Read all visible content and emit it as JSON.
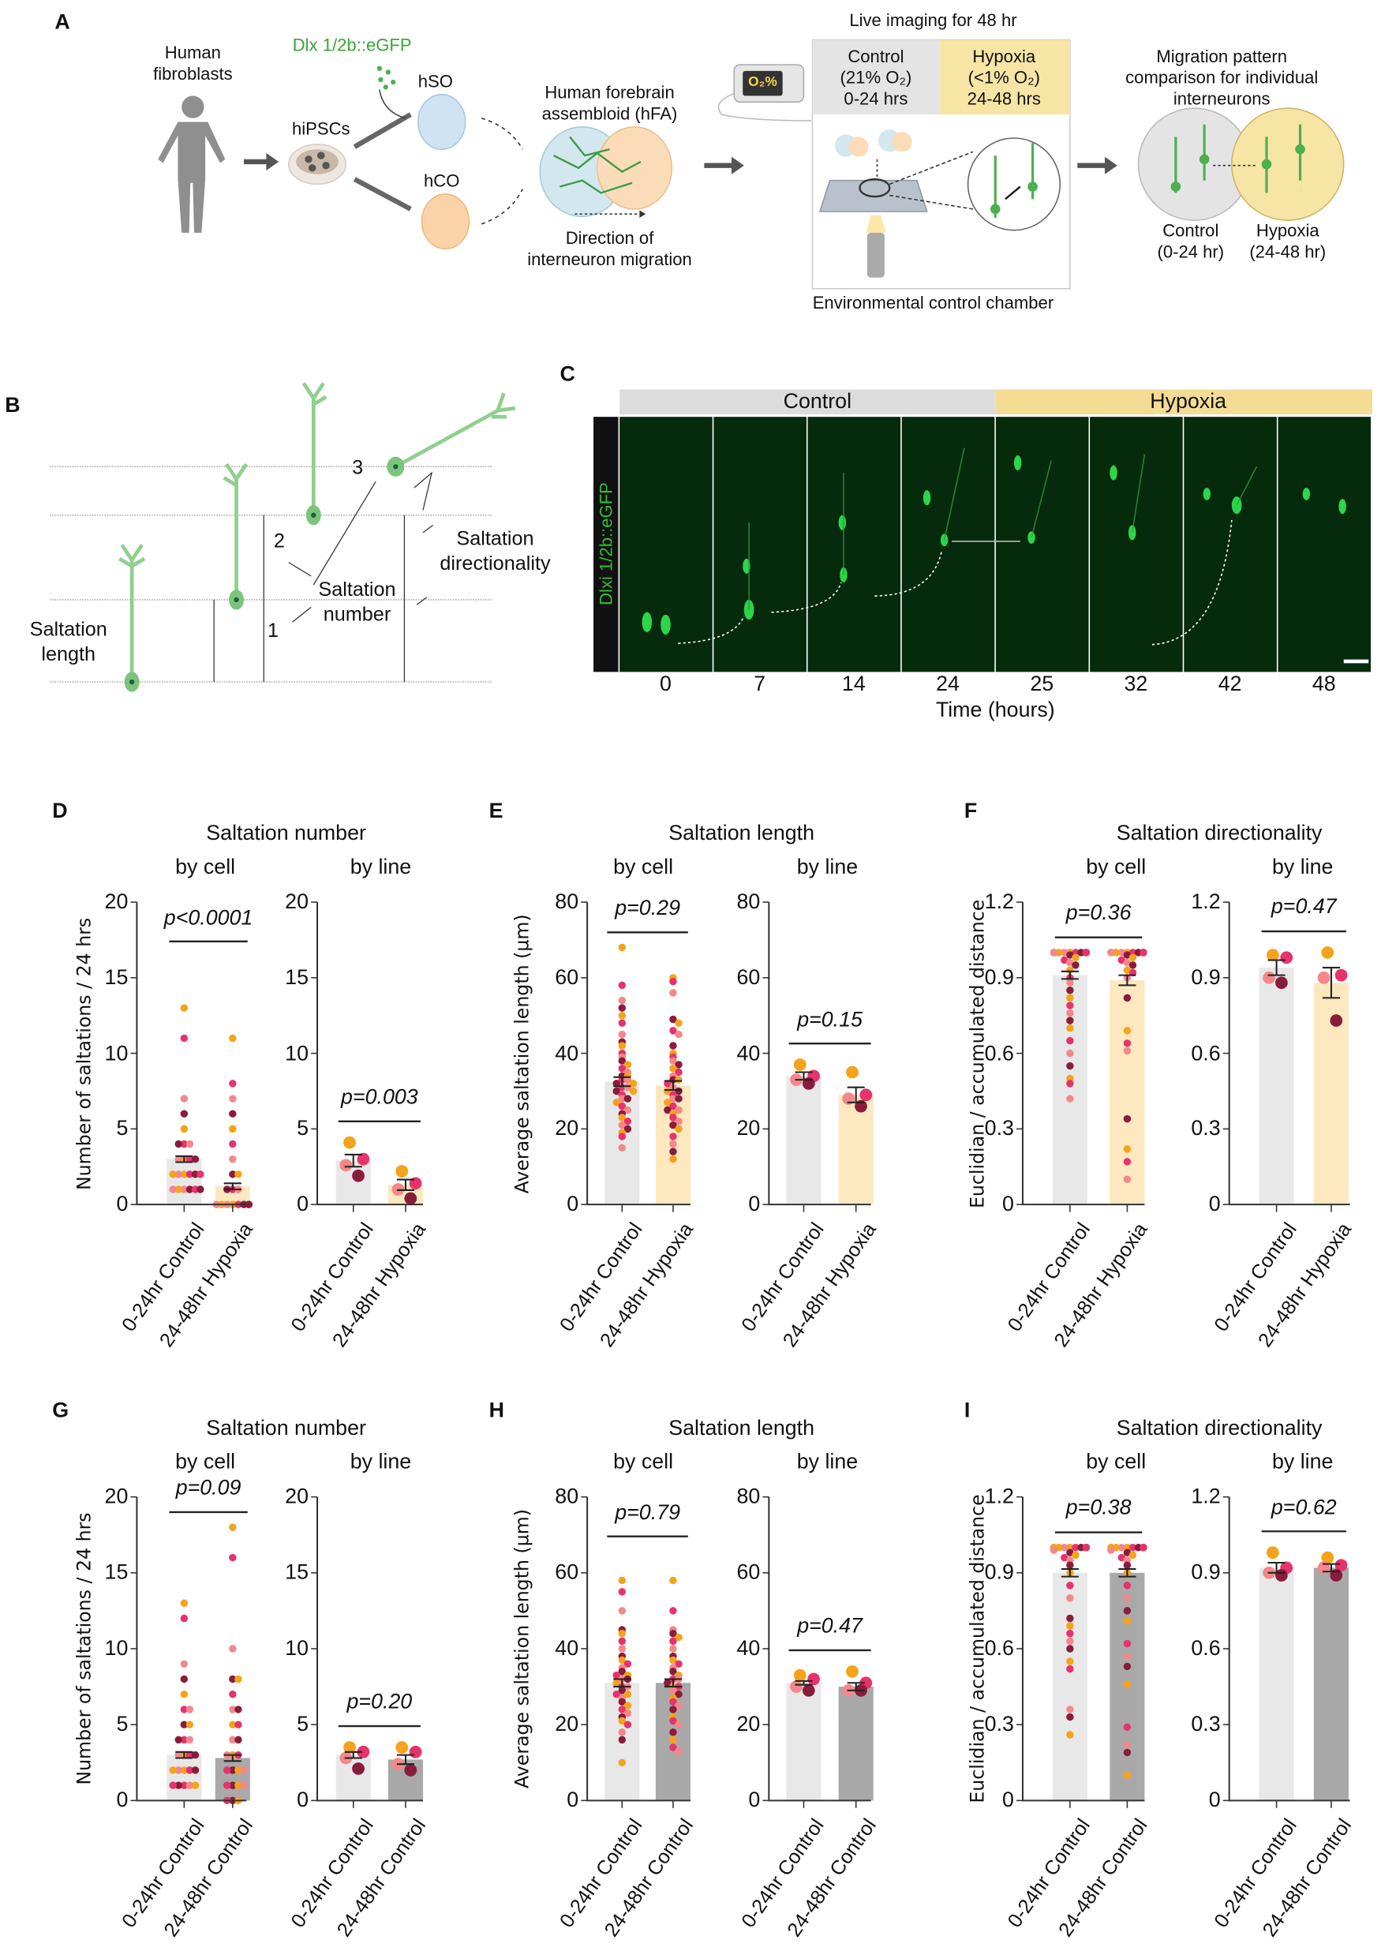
{
  "panel_labels": {
    "a": "A",
    "b": "B",
    "c": "C",
    "d": "D",
    "e": "E",
    "f": "F",
    "g": "G",
    "h": "H",
    "i": "I"
  },
  "panel_a": {
    "fibroblasts": "Human\nfibroblasts",
    "hipscs": "hiPSCs",
    "reporter": "Dlx 1/2b::eGFP",
    "hso": "hSO",
    "hco": "hCO",
    "hfa": "Human forebrain\nassembloid (hFA)",
    "direction": "Direction of\ninterneuron migration",
    "live_imaging": "Live imaging for 48 hr",
    "o2_display": "O₂%",
    "control_cond": "Control\n(21% O₂)\n0-24 hrs",
    "hypoxia_cond": "Hypoxia\n(<1% O₂)\n24-48 hrs",
    "chamber": "Environmental control chamber",
    "comparison": "Migration pattern\ncomparison for individual\ninterneurons",
    "control_label": "Control\n(0-24 hr)",
    "hypoxia_label": "Hypoxia\n(24-48 hr)",
    "colors": {
      "control": "#e4e4e4",
      "hypoxia": "#f6e5a5",
      "neuron": "#4caf50",
      "hso": "#cfe3f2",
      "hco": "#fbd3a8"
    }
  },
  "panel_b": {
    "n1": "1",
    "n2": "2",
    "n3": "3",
    "saltation_number": "Saltation\nnumber",
    "saltation_directionality": "Saltation\ndirectionality",
    "saltation_length": "Saltation\nlength"
  },
  "panel_c": {
    "control_header": "Control",
    "hypoxia_header": "Hypoxia",
    "stain_label": "Dlxi 1/2b::eGFP",
    "timepoints": [
      "0",
      "7",
      "14",
      "24",
      "25",
      "32",
      "42",
      "48"
    ],
    "xlabel": "Time (hours)"
  },
  "chart_data": [
    {
      "panel": "D",
      "type": "bar",
      "title": "Saltation number",
      "ylabel": "Number of saltations / 24 hrs",
      "ylim": [
        0,
        20
      ],
      "yticks": [
        0,
        5,
        10,
        15,
        20
      ],
      "categories": [
        "0-24hr Control",
        "24-48hr Hypoxia"
      ],
      "bar_colors": [
        "#e8e8e8",
        "#fde8bf"
      ],
      "subplots": [
        {
          "subtitle": "by cell",
          "p_value": "p<0.0001",
          "series": [
            {
              "mean": 3.0,
              "sem": 0.2,
              "points": [
                13,
                11,
                7,
                6,
                5,
                4,
                4,
                4,
                3,
                3,
                3,
                3,
                2,
                2,
                2,
                2,
                2,
                2,
                1,
                1,
                1,
                1,
                1,
                1
              ]
            },
            {
              "mean": 1.2,
              "sem": 0.2,
              "points": [
                11,
                8,
                7,
                6,
                5,
                4,
                3,
                2,
                2,
                1,
                1,
                1,
                0,
                0,
                0,
                0,
                0,
                0,
                0,
                0
              ]
            }
          ]
        },
        {
          "subtitle": "by line",
          "p_value": "p=0.003",
          "series": [
            {
              "mean": 2.9,
              "sem": 0.4,
              "points": [
                4.1,
                3.0,
                2.6,
                1.9
              ]
            },
            {
              "mean": 1.3,
              "sem": 0.35,
              "points": [
                2.2,
                1.4,
                1.0,
                0.4
              ]
            }
          ]
        }
      ]
    },
    {
      "panel": "E",
      "type": "bar",
      "title": "Saltation length",
      "ylabel": "Average saltation length (µm)",
      "ylim": [
        0,
        80
      ],
      "yticks": [
        0,
        20,
        40,
        60,
        80
      ],
      "categories": [
        "0-24hr Control",
        "24-48hr Hypoxia"
      ],
      "bar_colors": [
        "#e8e8e8",
        "#fde8bf"
      ],
      "subplots": [
        {
          "subtitle": "by cell",
          "p_value": "p=0.29",
          "series": [
            {
              "mean": 32.5,
              "sem": 1.2,
              "points": [
                68,
                58,
                54,
                52,
                50,
                48,
                45,
                43,
                42,
                40,
                39,
                38,
                37,
                36,
                35,
                34,
                34,
                33,
                33,
                32,
                32,
                31,
                31,
                30,
                30,
                29,
                28,
                28,
                27,
                26,
                25,
                24,
                23,
                22,
                21,
                20,
                19,
                18,
                15
              ]
            },
            {
              "mean": 31.5,
              "sem": 1.2,
              "points": [
                60,
                59,
                56,
                49,
                48,
                46,
                45,
                42,
                40,
                39,
                38,
                37,
                36,
                35,
                34,
                33,
                33,
                32,
                31,
                30,
                30,
                29,
                28,
                28,
                27,
                26,
                25,
                25,
                24,
                23,
                22,
                21,
                20,
                18,
                16,
                14,
                12
              ]
            }
          ]
        },
        {
          "subtitle": "by line",
          "p_value": "p=0.15",
          "series": [
            {
              "mean": 34,
              "sem": 1,
              "points": [
                37,
                34,
                33,
                32
              ]
            },
            {
              "mean": 29,
              "sem": 2,
              "points": [
                35,
                29,
                28,
                26
              ]
            }
          ]
        }
      ]
    },
    {
      "panel": "F",
      "type": "bar",
      "title": "Saltation directionality",
      "ylabel": "Euclidian / accumulated distance",
      "ylim": [
        0,
        1.2
      ],
      "yticks": [
        0,
        0.3,
        0.6,
        0.9,
        1.2
      ],
      "categories": [
        "0-24hr Control",
        "24-48hr Hypoxia"
      ],
      "bar_colors": [
        "#e8e8e8",
        "#fde8bf"
      ],
      "subplots": [
        {
          "subtitle": "by cell",
          "p_value": "p=0.36",
          "series": [
            {
              "mean": 0.91,
              "sem": 0.015,
              "points": [
                1,
                1,
                1,
                1,
                1,
                1,
                1,
                1,
                1,
                1,
                1,
                0.99,
                0.98,
                0.97,
                0.96,
                0.95,
                0.93,
                0.9,
                0.88,
                0.85,
                0.82,
                0.79,
                0.76,
                0.73,
                0.7,
                0.65,
                0.6,
                0.55,
                0.5,
                0.48,
                0.42
              ]
            },
            {
              "mean": 0.89,
              "sem": 0.02,
              "points": [
                1,
                1,
                1,
                1,
                1,
                1,
                1,
                1,
                1,
                1,
                1,
                0.99,
                0.98,
                0.97,
                0.96,
                0.95,
                0.93,
                0.92,
                0.9,
                0.82,
                0.69,
                0.64,
                0.61,
                0.34,
                0.22,
                0.17,
                0.1
              ]
            }
          ]
        },
        {
          "subtitle": "by line",
          "p_value": "p=0.47",
          "series": [
            {
              "mean": 0.94,
              "sem": 0.03,
              "points": [
                0.99,
                0.98,
                0.9,
                0.88
              ]
            },
            {
              "mean": 0.88,
              "sem": 0.06,
              "points": [
                1.0,
                0.91,
                0.9,
                0.73
              ]
            }
          ]
        }
      ]
    },
    {
      "panel": "G",
      "type": "bar",
      "title": "Saltation number",
      "ylabel": "Number of saltations / 24 hrs",
      "ylim": [
        0,
        20
      ],
      "yticks": [
        0,
        5,
        10,
        15,
        20
      ],
      "categories": [
        "0-24hr Control",
        "24-48hr Control"
      ],
      "bar_colors": [
        "#e8e8e8",
        "#a9a9a9"
      ],
      "subplots": [
        {
          "subtitle": "by cell",
          "p_value": "p=0.09",
          "series": [
            {
              "mean": 3.0,
              "sem": 0.2,
              "points": [
                13,
                12,
                9,
                8,
                7,
                6,
                6,
                5,
                5,
                4,
                4,
                4,
                3,
                3,
                3,
                3,
                2,
                2,
                2,
                2,
                2,
                1,
                1,
                1,
                1,
                1
              ]
            },
            {
              "mean": 2.8,
              "sem": 0.2,
              "points": [
                18,
                16,
                10,
                8,
                8,
                7,
                6,
                6,
                5,
                5,
                4,
                4,
                3,
                3,
                3,
                2,
                2,
                2,
                2,
                1,
                1,
                1,
                1,
                0,
                0,
                0
              ]
            }
          ]
        },
        {
          "subtitle": "by line",
          "p_value": "p=0.20",
          "series": [
            {
              "mean": 3.0,
              "sem": 0.2,
              "points": [
                3.5,
                3.2,
                2.8,
                2.1
              ]
            },
            {
              "mean": 2.7,
              "sem": 0.3,
              "points": [
                3.5,
                3.2,
                2.4,
                2.0
              ]
            }
          ]
        }
      ]
    },
    {
      "panel": "H",
      "type": "bar",
      "title": "Saltation length",
      "ylabel": "Average saltation length (µm)",
      "ylim": [
        0,
        80
      ],
      "yticks": [
        0,
        20,
        40,
        60,
        80
      ],
      "categories": [
        "0-24hr Control",
        "24-48hr Control"
      ],
      "bar_colors": [
        "#e8e8e8",
        "#a9a9a9"
      ],
      "subplots": [
        {
          "subtitle": "by cell",
          "p_value": "p=0.79",
          "series": [
            {
              "mean": 31,
              "sem": 1,
              "points": [
                58,
                55,
                50,
                45,
                44,
                42,
                40,
                38,
                37,
                36,
                35,
                34,
                33,
                33,
                32,
                32,
                31,
                30,
                30,
                29,
                28,
                28,
                27,
                26,
                25,
                24,
                23,
                22,
                21,
                20,
                18,
                16,
                10
              ]
            },
            {
              "mean": 31,
              "sem": 1,
              "points": [
                58,
                50,
                45,
                44,
                43,
                42,
                40,
                38,
                37,
                36,
                35,
                34,
                33,
                32,
                32,
                31,
                30,
                30,
                29,
                28,
                27,
                26,
                25,
                24,
                22,
                21,
                20,
                18,
                16,
                14,
                13
              ]
            }
          ]
        },
        {
          "subtitle": "by line",
          "p_value": "p=0.47",
          "series": [
            {
              "mean": 31,
              "sem": 0.5,
              "points": [
                33,
                32,
                30,
                29
              ]
            },
            {
              "mean": 30,
              "sem": 1,
              "points": [
                34,
                31,
                29,
                29
              ]
            }
          ]
        }
      ]
    },
    {
      "panel": "I",
      "type": "bar",
      "title": "Saltation directionality",
      "ylabel": "Euclidian / accumulated distance",
      "ylim": [
        0,
        1.2
      ],
      "yticks": [
        0,
        0.3,
        0.6,
        0.9,
        1.2
      ],
      "categories": [
        "0-24hr Control",
        "24-48hr Control"
      ],
      "bar_colors": [
        "#e8e8e8",
        "#a9a9a9"
      ],
      "subplots": [
        {
          "subtitle": "by cell",
          "p_value": "p=0.38",
          "series": [
            {
              "mean": 0.9,
              "sem": 0.015,
              "points": [
                1,
                1,
                1,
                1,
                1,
                1,
                1,
                1,
                1,
                1,
                0.99,
                0.98,
                0.97,
                0.96,
                0.95,
                0.93,
                0.9,
                0.85,
                0.8,
                0.72,
                0.69,
                0.66,
                0.63,
                0.6,
                0.55,
                0.52,
                0.36,
                0.33,
                0.26
              ]
            },
            {
              "mean": 0.9,
              "sem": 0.015,
              "points": [
                1,
                1,
                1,
                1,
                1,
                1,
                1,
                1,
                1,
                1,
                0.99,
                0.98,
                0.97,
                0.96,
                0.95,
                0.93,
                0.9,
                0.85,
                0.8,
                0.75,
                0.71,
                0.62,
                0.57,
                0.53,
                0.46,
                0.29,
                0.22,
                0.19,
                0.1
              ]
            }
          ]
        },
        {
          "subtitle": "by line",
          "p_value": "p=0.62",
          "series": [
            {
              "mean": 0.92,
              "sem": 0.02,
              "points": [
                0.98,
                0.92,
                0.9,
                0.89
              ]
            },
            {
              "mean": 0.92,
              "sem": 0.015,
              "points": [
                0.96,
                0.93,
                0.92,
                0.89
              ]
            }
          ]
        }
      ]
    }
  ],
  "point_colors": [
    "#f5a31a",
    "#e6336b",
    "#f4878a",
    "#8a1c3b"
  ]
}
